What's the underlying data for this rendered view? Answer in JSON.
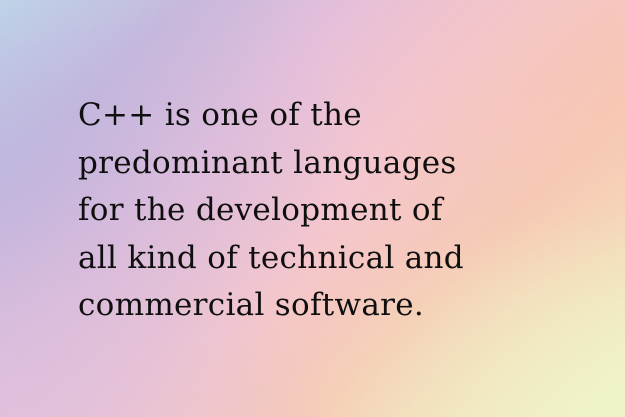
{
  "background": {
    "colors": [
      "#bfe0ec",
      "#c9b9dc",
      "#e5bfdb",
      "#f4c6cf",
      "#f6cab5",
      "#f3dfbd",
      "#f1f2c8"
    ]
  },
  "quote": {
    "color": "#0f0f0f",
    "lines": [
      "C++ is one of the",
      "predominant languages",
      "for the development of",
      "all kind of technical and",
      "commercial software."
    ]
  }
}
